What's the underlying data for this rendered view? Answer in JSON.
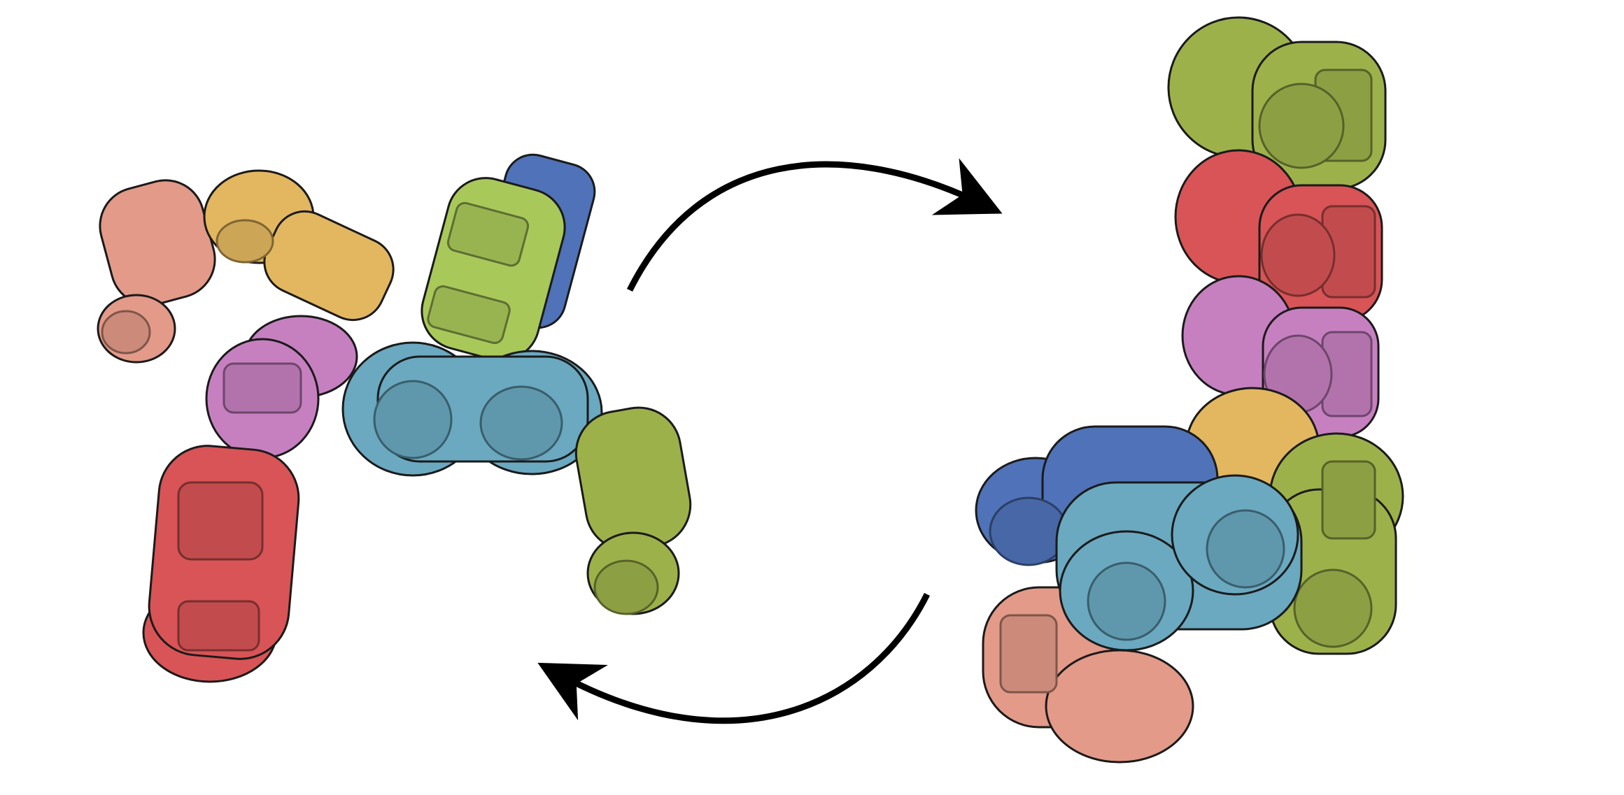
{
  "figure": {
    "description_visible_text": "",
    "panels": [
      {
        "name": "unfolded-configuration",
        "modules": [
          "salmon",
          "orange",
          "green",
          "blue",
          "purple",
          "teal",
          "olive",
          "red"
        ]
      },
      {
        "name": "folded-configuration",
        "modules": [
          "olive",
          "red",
          "purple",
          "orange",
          "blue",
          "teal",
          "green",
          "salmon"
        ]
      }
    ],
    "arrows": [
      {
        "name": "arrow-forward",
        "direction": "clockwise-top"
      },
      {
        "name": "arrow-backward",
        "direction": "clockwise-bottom"
      }
    ]
  },
  "colors": {
    "salmon": "#e39a88",
    "orange": "#e3b760",
    "green": "#a9c85a",
    "olive": "#9db14a",
    "blue": "#4f72b8",
    "purple": "#c680c0",
    "teal": "#6aa9c0",
    "red": "#d85456",
    "stroke": "#1a1a1a",
    "arrow": "#000000"
  }
}
